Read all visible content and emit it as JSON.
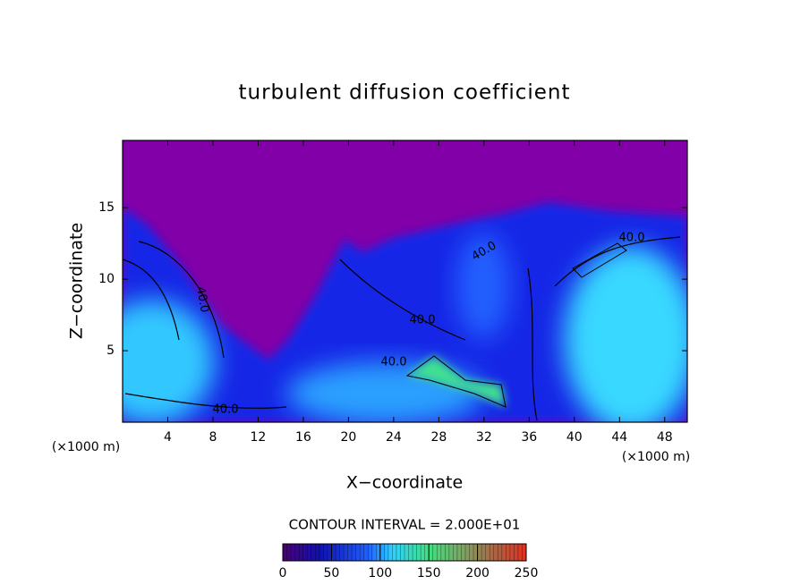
{
  "chart_data": {
    "type": "contour",
    "title": "turbulent diffusion coefficient",
    "xlabel": "X−coordinate",
    "ylabel": "Z−coordinate",
    "x_unit_left": "(×1000 m)",
    "x_unit_right": "(×1000 m)",
    "xlim": [
      0,
      50
    ],
    "xticks": [
      4,
      8,
      12,
      16,
      20,
      24,
      28,
      32,
      36,
      40,
      44,
      48
    ],
    "ylim": [
      0,
      19.7
    ],
    "yticks": [
      5,
      10,
      15
    ],
    "contour_interval": "CONTOUR INTERVAL = 2.000E+01",
    "contour_labels": [
      "40.0",
      "40.0",
      "40.0",
      "40.0",
      "40.0",
      "40.0"
    ],
    "colorbar": {
      "lim": [
        0,
        250
      ],
      "ticks": [
        0,
        50,
        100,
        150,
        200,
        250
      ]
    }
  }
}
